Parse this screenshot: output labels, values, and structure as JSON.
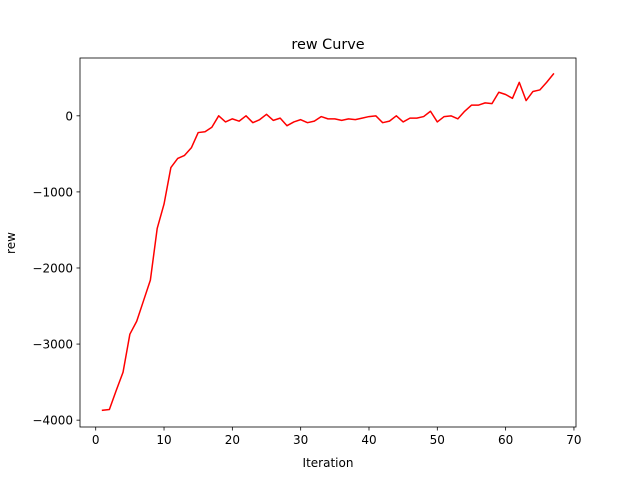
{
  "chart_data": {
    "type": "line",
    "title": "rew Curve",
    "xlabel": "Iteration",
    "ylabel": "rew",
    "xlim": [
      -2.3,
      70.3
    ],
    "ylim": [
      -4090,
      760
    ],
    "xticks": [
      0,
      10,
      20,
      30,
      40,
      50,
      60,
      70
    ],
    "yticks": [
      -4000,
      -3000,
      -2000,
      -1000,
      0
    ],
    "ytick_labels": [
      "−4000",
      "−3000",
      "−2000",
      "−1000",
      "0"
    ],
    "grid": false,
    "line_color": "#ff0000",
    "series": [
      {
        "x": [
          1,
          2,
          3,
          4,
          5,
          6,
          7,
          8,
          9,
          10,
          11,
          12,
          13,
          14,
          15,
          16,
          17,
          18,
          19,
          20,
          21,
          22,
          23,
          24,
          25,
          26,
          27,
          28,
          29,
          30,
          31,
          32,
          33,
          34,
          35,
          36,
          37,
          38,
          39,
          40,
          41,
          42,
          43,
          44,
          45,
          46,
          47,
          48,
          49,
          50,
          51,
          52,
          53,
          54,
          55,
          56,
          57,
          58,
          59,
          60,
          61,
          62,
          63,
          64,
          65,
          66,
          67
        ],
        "values": [
          -3870,
          -3860,
          -3610,
          -3370,
          -2870,
          -2700,
          -2430,
          -2160,
          -1480,
          -1160,
          -680,
          -560,
          -520,
          -420,
          -220,
          -210,
          -150,
          0,
          -80,
          -40,
          -70,
          0,
          -90,
          -50,
          20,
          -60,
          -30,
          -130,
          -80,
          -50,
          -90,
          -70,
          -10,
          -40,
          -40,
          -60,
          -40,
          -50,
          -30,
          -10,
          0,
          -90,
          -70,
          0,
          -80,
          -30,
          -30,
          -10,
          60,
          -80,
          -10,
          0,
          -40,
          60,
          140,
          140,
          170,
          160,
          310,
          280,
          230,
          440,
          200,
          320,
          340,
          440,
          550
        ]
      }
    ]
  }
}
